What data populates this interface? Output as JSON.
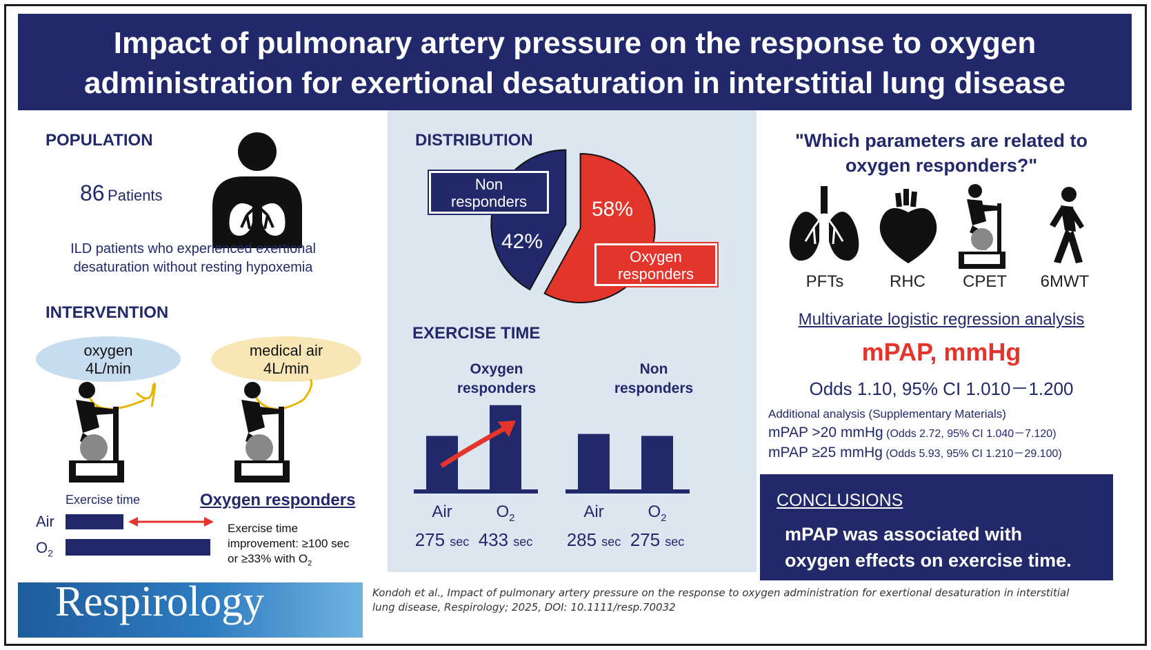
{
  "title": "Impact of pulmonary artery pressure on the response to oxygen administration for exertional desaturation in interstitial lung disease",
  "population": {
    "heading": "POPULATION",
    "count": "86",
    "count_unit": "Patients",
    "description": "ILD patients who experienced exertional desaturation without resting hypoxemia"
  },
  "intervention": {
    "heading": "INTERVENTION",
    "oxygen_label": "oxygen",
    "oxygen_rate": "4L/min",
    "air_label": "medical air",
    "air_rate": "4L/min",
    "exercise_time_label": "Exercise time",
    "air_row": "Air",
    "o2_row": "O",
    "o2_sub": "2",
    "responders_heading": "Oxygen responders",
    "criteria_line1": "Exercise time",
    "criteria_line2": "improvement: ≥100 sec",
    "criteria_line3": "or ≥33% with O",
    "criteria_sub": "2"
  },
  "distribution": {
    "heading": "DISTRIBUTION",
    "non_label_1": "Non",
    "non_label_2": "responders",
    "non_pct": "42%",
    "oxy_pct": "58%",
    "oxy_label_1": "Oxygen",
    "oxy_label_2": "responders",
    "color_non": "#22296b",
    "color_oxy": "#e3352b"
  },
  "exercise_time": {
    "heading": "EXERCISE TIME",
    "group1_line1": "Oxygen",
    "group1_line2": "responders",
    "group2_line1": "Non",
    "group2_line2": "responders",
    "unit": "sec"
  },
  "chart_data": {
    "type": "bar",
    "title": "EXERCISE TIME",
    "ylabel": "",
    "ylim": [
      0,
      500
    ],
    "groups": [
      {
        "name": "Oxygen responders",
        "categories": [
          "Air",
          "O2"
        ],
        "values": [
          275,
          433
        ]
      },
      {
        "name": "Non responders",
        "categories": [
          "Air",
          "O2"
        ],
        "values": [
          285,
          275
        ]
      }
    ]
  },
  "parameters": {
    "question_line1": "\"Which parameters are related to",
    "question_line2": "oxygen responders?\"",
    "icons": [
      {
        "label": "PFTs",
        "icon": "lungs-icon"
      },
      {
        "label": "RHC",
        "icon": "heart-icon"
      },
      {
        "label": "CPET",
        "icon": "exercise-bike-icon"
      },
      {
        "label": "6MWT",
        "icon": "walking-person-icon"
      }
    ],
    "analysis": "Multivariate logistic regression analysis",
    "key_param": "mPAP, mmHg",
    "odds": "Odds 1.10, 95% CI 1.010－1.200",
    "additional": "Additional analysis (Supplementary Materials)",
    "add1_main": "mPAP >20 mmHg",
    "add1_detail": "(Odds 2.72, 95% CI 1.040－7.120)",
    "add2_main": "mPAP ≥25 mmHg",
    "add2_detail": "(Odds 5.93, 95% CI 1.210－29.100)"
  },
  "conclusions": {
    "heading": "CONCLUSIONS",
    "line1": "mPAP was associated with",
    "line2": "oxygen effects on exercise time."
  },
  "journal": "Respirology",
  "citation_line1": "Kondoh et al., Impact of pulmonary artery pressure on the response to oxygen administration for exertional desaturation in interstitial",
  "citation_line2": "lung disease, Respirology; 2025, DOI: 10.1111/resp.70032",
  "colors": {
    "navy": "#22296b",
    "red": "#e3352b",
    "panel_blue": "#dce6f1",
    "oxygen_bubble": "#c7dcef",
    "air_bubble": "#f8e7b6"
  }
}
